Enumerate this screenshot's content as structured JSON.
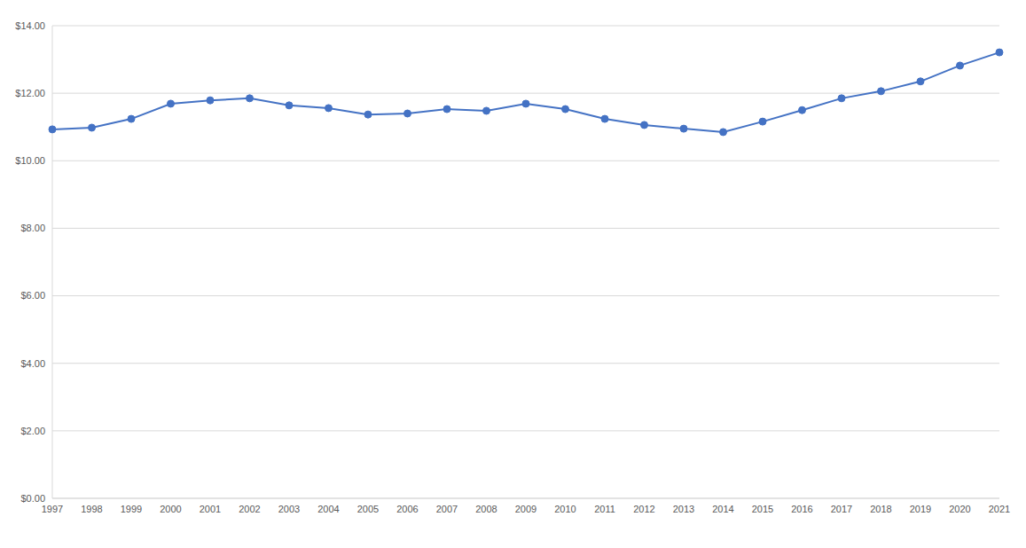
{
  "chart_data": {
    "type": "line",
    "categories": [
      "1997",
      "1998",
      "1999",
      "2000",
      "2001",
      "2002",
      "2003",
      "2004",
      "2005",
      "2006",
      "2007",
      "2008",
      "2009",
      "2010",
      "2011",
      "2012",
      "2013",
      "2014",
      "2015",
      "2016",
      "2017",
      "2018",
      "2019",
      "2020",
      "2021"
    ],
    "values": [
      10.93,
      10.98,
      11.24,
      11.69,
      11.79,
      11.85,
      11.64,
      11.56,
      11.37,
      11.4,
      11.53,
      11.48,
      11.69,
      11.53,
      11.24,
      11.06,
      10.95,
      10.85,
      11.16,
      11.5,
      11.85,
      12.06,
      12.35,
      12.82,
      13.21
    ],
    "color": "#4472c4",
    "marker": "circle",
    "ylim": [
      0,
      14
    ],
    "yticks": [
      {
        "value": 0,
        "label": "$0.00"
      },
      {
        "value": 2,
        "label": "$2.00"
      },
      {
        "value": 4,
        "label": "$4.00"
      },
      {
        "value": 6,
        "label": "$6.00"
      },
      {
        "value": 8,
        "label": "$8.00"
      },
      {
        "value": 10,
        "label": "$10.00"
      },
      {
        "value": 12,
        "label": "$12.00"
      },
      {
        "value": 14,
        "label": "$14.00"
      }
    ],
    "grid": true
  }
}
